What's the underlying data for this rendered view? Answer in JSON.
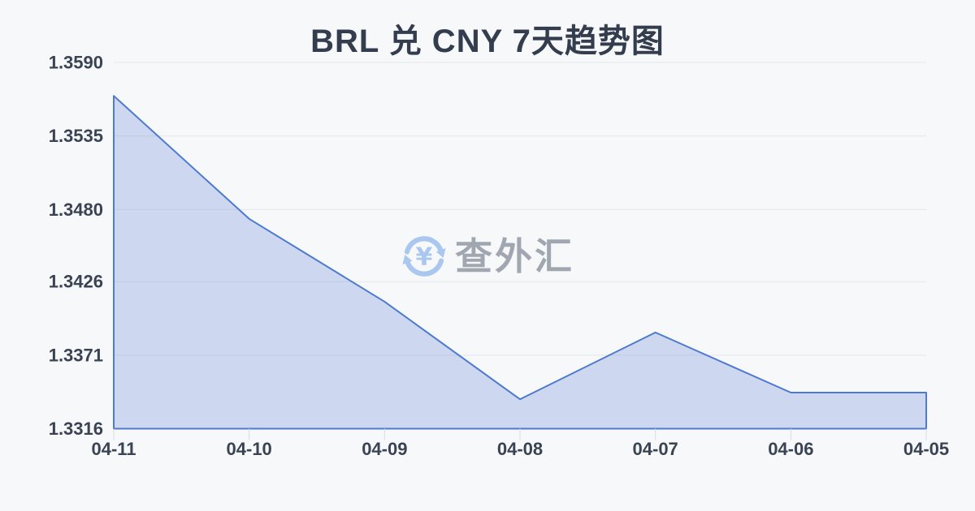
{
  "header": {
    "title": "BRL 兑 CNY 7天趋势图"
  },
  "watermark": {
    "brand": "查外汇",
    "currency_symbol": "¥",
    "icon": "currency-exchange-icon",
    "icon_color": "#aac7f0",
    "text_color": "#a1a7b0"
  },
  "chart_data": {
    "type": "area",
    "title": "BRL 兑 CNY 7天趋势图",
    "x": [
      "04-11",
      "04-10",
      "04-09",
      "04-08",
      "04-07",
      "04-06",
      "04-05"
    ],
    "series": [
      {
        "name": "BRL/CNY",
        "values": [
          1.3565,
          1.3473,
          1.3411,
          1.3338,
          1.3388,
          1.3343,
          1.3343
        ]
      }
    ],
    "xlabel": "",
    "ylabel": "",
    "ylim": [
      1.3316,
      1.359
    ],
    "y_ticks": [
      1.359,
      1.3535,
      1.348,
      1.3426,
      1.3371,
      1.3316
    ],
    "y_tick_labels": [
      "1.3590",
      "1.3535",
      "1.3480",
      "1.3426",
      "1.3371",
      "1.3316"
    ],
    "grid": true,
    "legend_position": "none",
    "line_color": "#4d7ace",
    "fill_color": "rgba(79,120,210,0.25)",
    "axis_label_color": "#3a4354",
    "gridline_color": "#e4e6ea",
    "tick_color": "#d9dce1"
  }
}
